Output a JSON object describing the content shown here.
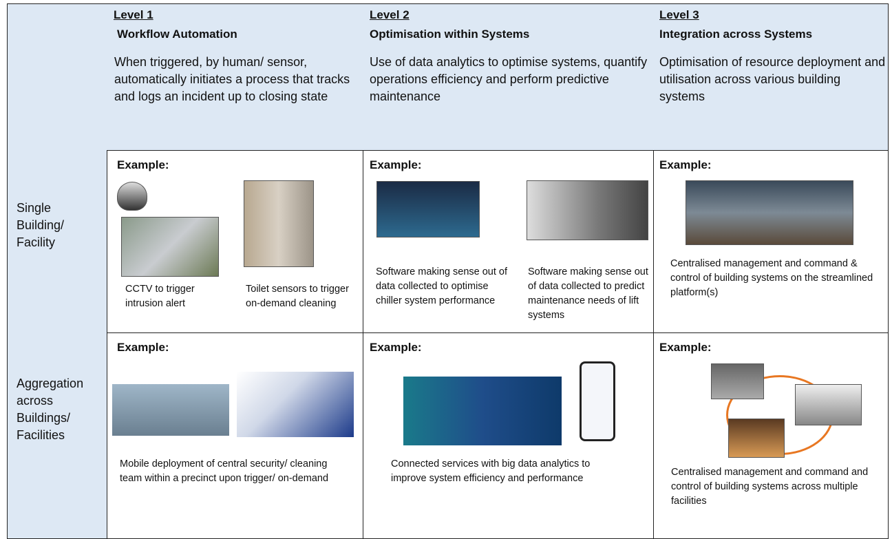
{
  "table": {
    "columns": [
      {
        "level": "Level 1",
        "title": "Workflow Automation",
        "description": "When triggered, by human/ sensor, automatically initiates a process that tracks and logs an incident up to closing state"
      },
      {
        "level": "Level 2",
        "title": "Optimisation within Systems",
        "description": "Use of data analytics to optimise systems, quantify operations efficiency and perform predictive maintenance"
      },
      {
        "level": "Level 3",
        "title": "Integration across Systems",
        "description": "Optimisation of resource deployment and utilisation across various building systems"
      }
    ],
    "rows": [
      {
        "label": "Single Building/ Facility",
        "cells": [
          {
            "heading": "Example:",
            "captions": [
              "CCTV to trigger intrusion alert",
              "Toilet sensors to trigger on-demand cleaning"
            ]
          },
          {
            "heading": "Example:",
            "captions": [
              "Software making sense out of data collected to optimise chiller system performance",
              "Software making sense out of data collected to predict maintenance needs of lift systems"
            ]
          },
          {
            "heading": "Example:",
            "captions": [
              "Centralised management and command & control of building systems on the streamlined platform(s)"
            ]
          }
        ]
      },
      {
        "label": "Aggregation across Buildings/ Facilities",
        "cells": [
          {
            "heading": "Example:",
            "captions": [
              "Mobile deployment of central security/ cleaning team within a precinct upon trigger/ on-demand"
            ]
          },
          {
            "heading": "Example:",
            "captions": [
              "Connected services with big data analytics to improve system efficiency and performance"
            ]
          },
          {
            "heading": "Example:",
            "captions": [
              "Centralised management and command and control of building systems across multiple facilities"
            ]
          }
        ]
      }
    ]
  }
}
